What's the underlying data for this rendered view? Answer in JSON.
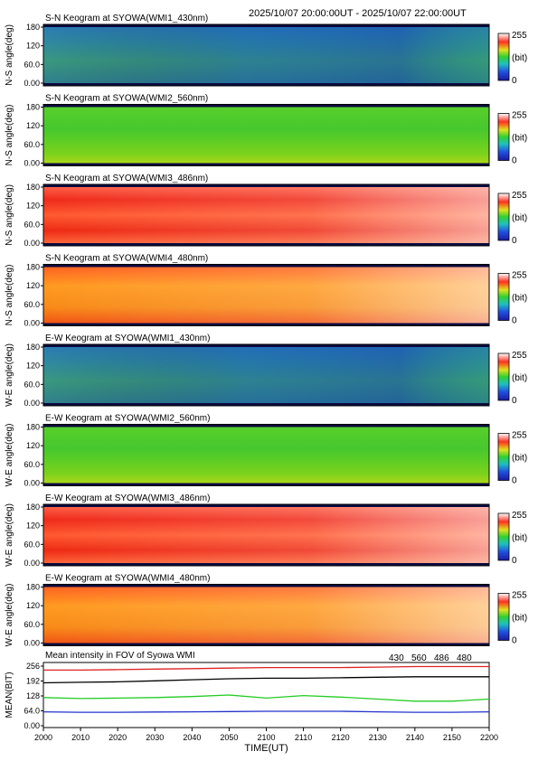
{
  "header": {
    "time_range": "2025/10/07 20:00:00UT - 2025/10/07 22:00:00UT"
  },
  "colors": {
    "frame": "#000000",
    "s430": "#2233cc",
    "s560": "#22cc22",
    "s486": "#dd2222",
    "s480": "#000000"
  },
  "colorbar": {
    "max_label": "255",
    "unit_label": "(bit)",
    "min_label": "0"
  },
  "keograms": [
    {
      "title": "S-N Keogram at SYOWA(WMI1_430nm)",
      "ylabel": "N-S angle(deg)",
      "yticks": [
        "180",
        "120",
        "60.0",
        "0.00"
      ],
      "palette": "blue"
    },
    {
      "title": "S-N Keogram at SYOWA(WMI2_560nm)",
      "ylabel": "N-S angle(deg)",
      "yticks": [
        "180",
        "120",
        "60.0",
        "0.00"
      ],
      "palette": "green"
    },
    {
      "title": "S-N Keogram at SYOWA(WMI3_486nm)",
      "ylabel": "N-S angle(deg)",
      "yticks": [
        "180",
        "120",
        "60.0",
        "0.00"
      ],
      "palette": "red"
    },
    {
      "title": "S-N Keogram at SYOWA(WMI4_480nm)",
      "ylabel": "N-S angle(deg)",
      "yticks": [
        "180",
        "120",
        "60.0",
        "0.00"
      ],
      "palette": "orange"
    },
    {
      "title": "E-W Keogram at SYOWA(WMI1_430nm)",
      "ylabel": "W-E angle(deg)",
      "yticks": [
        "180",
        "120",
        "60.0",
        "0.00"
      ],
      "palette": "blue"
    },
    {
      "title": "E-W Keogram at SYOWA(WMI2_560nm)",
      "ylabel": "W-E angle(deg)",
      "yticks": [
        "180",
        "120",
        "60.0",
        "0.00"
      ],
      "palette": "green"
    },
    {
      "title": "E-W Keogram at SYOWA(WMI3_486nm)",
      "ylabel": "W-E angle(deg)",
      "yticks": [
        "180",
        "120",
        "60.0",
        "0.00"
      ],
      "palette": "red"
    },
    {
      "title": "E-W Keogram at SYOWA(WMI4_480nm)",
      "ylabel": "W-E angle(deg)",
      "yticks": [
        "180",
        "120",
        "60.0",
        "0.00"
      ],
      "palette": "orange"
    }
  ],
  "chart_data": {
    "type": "line",
    "title": "Mean intensity in FOV of Syowa WMI",
    "xlabel": "TIME(UT)",
    "ylabel": "MEAN(BIT)",
    "xticks": [
      "2000",
      "2010",
      "2020",
      "2030",
      "2040",
      "2050",
      "2100",
      "2110",
      "2120",
      "2130",
      "2140",
      "2150",
      "2200"
    ],
    "yticks": [
      "256",
      "192",
      "128",
      "64.0",
      "0.00"
    ],
    "ylim": [
      0,
      256
    ],
    "x": [
      "2000",
      "2010",
      "2020",
      "2030",
      "2040",
      "2050",
      "2100",
      "2110",
      "2120",
      "2130",
      "2140",
      "2150",
      "2200"
    ],
    "series": [
      {
        "name": "430",
        "color": "#2233cc",
        "values": [
          62,
          60,
          60,
          61,
          62,
          63,
          64,
          64,
          64,
          62,
          60,
          60,
          62
        ]
      },
      {
        "name": "560",
        "color": "#22cc22",
        "values": [
          118,
          114,
          116,
          118,
          122,
          128,
          116,
          126,
          120,
          112,
          104,
          104,
          112
        ]
      },
      {
        "name": "486",
        "color": "#dd2222",
        "values": [
          226,
          226,
          228,
          230,
          232,
          234,
          236,
          236,
          236,
          238,
          240,
          240,
          240
        ]
      },
      {
        "name": "480",
        "color": "#000000",
        "values": [
          176,
          178,
          180,
          184,
          188,
          192,
          194,
          194,
          196,
          198,
          200,
          200,
          200
        ]
      }
    ]
  }
}
